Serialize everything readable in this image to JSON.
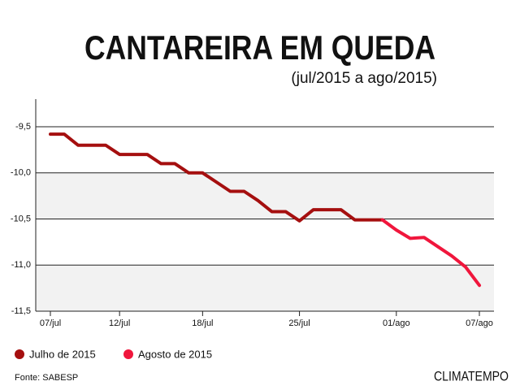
{
  "chart_data": {
    "type": "line",
    "title": "CANTAREIRA EM QUEDA",
    "subtitle": "(jul/2015 a ago/2015)",
    "source": "Fonte: SABESP",
    "brand": "CLIMATEMPO",
    "categories": [
      "07/jul",
      null,
      null,
      null,
      null,
      "12/jul",
      null,
      null,
      null,
      null,
      null,
      "18/jul",
      null,
      null,
      null,
      null,
      null,
      null,
      "25/jul",
      null,
      null,
      null,
      null,
      null,
      null,
      "01/ago",
      null,
      null,
      null,
      null,
      null,
      "07/ago"
    ],
    "series": [
      {
        "name": "Julho de 2015",
        "color": "#a50f0f",
        "values": [
          -9.58,
          -9.58,
          -9.7,
          -9.7,
          -9.7,
          -9.8,
          -9.8,
          -9.8,
          -9.9,
          -9.9,
          -10.0,
          -10.0,
          -10.1,
          -10.2,
          -10.2,
          -10.3,
          -10.42,
          -10.42,
          -10.52,
          -10.4,
          -10.4,
          -10.4,
          -10.51,
          -10.51,
          -10.51,
          null,
          null,
          null,
          null,
          null,
          null,
          null
        ]
      },
      {
        "name": "Agosto de 2015",
        "color": "#f0163c",
        "values": [
          null,
          null,
          null,
          null,
          null,
          null,
          null,
          null,
          null,
          null,
          null,
          null,
          null,
          null,
          null,
          null,
          null,
          null,
          null,
          null,
          null,
          null,
          null,
          null,
          -10.51,
          -10.62,
          -10.71,
          -10.7,
          -10.8,
          -10.9,
          -11.02,
          -11.22
        ]
      }
    ],
    "ylim": [
      -11.5,
      -9.2
    ],
    "yticks": [
      {
        "value": -9.5,
        "label": "-9,5"
      },
      {
        "value": -10.0,
        "label": "-10,0"
      },
      {
        "value": -10.5,
        "label": "-10,5"
      },
      {
        "value": -11.0,
        "label": "-11,0"
      },
      {
        "value": -11.5,
        "label": "-11,5"
      }
    ],
    "grid": true
  }
}
